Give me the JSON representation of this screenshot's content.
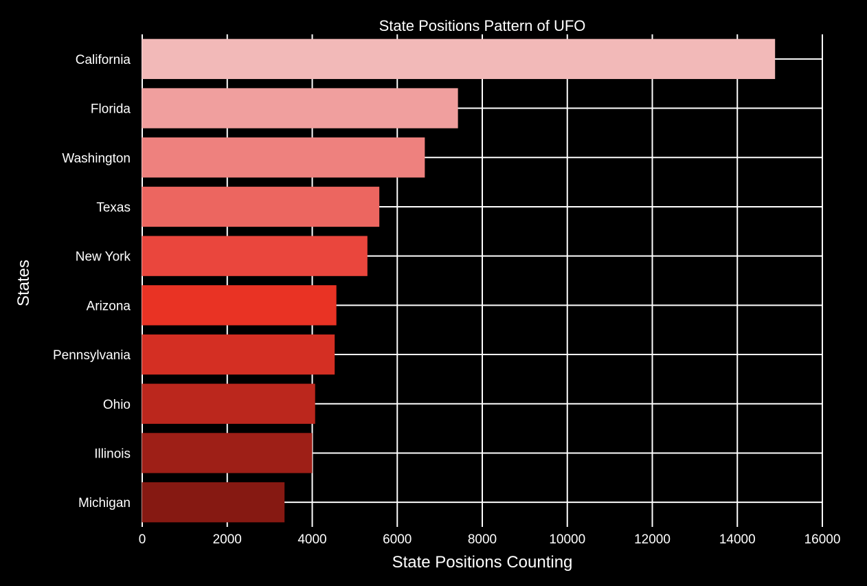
{
  "chart_data": {
    "type": "bar",
    "orientation": "horizontal",
    "title": "State Positions Pattern of UFO",
    "xlabel": "State Positions Counting",
    "ylabel": "States",
    "categories": [
      "California",
      "Florida",
      "Washington",
      "Texas",
      "New York",
      "Arizona",
      "Pennsylvania",
      "Ohio",
      "Illinois",
      "Michigan"
    ],
    "values": [
      14880,
      7420,
      6640,
      5570,
      5290,
      4560,
      4520,
      4060,
      3990,
      3340
    ],
    "xlim": [
      0,
      16000
    ],
    "xticks": [
      "0",
      "2000",
      "4000",
      "6000",
      "8000",
      "10000",
      "12000",
      "14000",
      "16000"
    ],
    "grid": true,
    "colors": {
      "background": "#000000",
      "grid": "#ffffff",
      "text": "#ffffff",
      "bars": [
        "#f2b9b8",
        "#f09f9e",
        "#ee817e",
        "#ec6660",
        "#ea463d",
        "#e93324",
        "#d42f23",
        "#bb271d",
        "#9e1f17",
        "#861912"
      ]
    }
  }
}
